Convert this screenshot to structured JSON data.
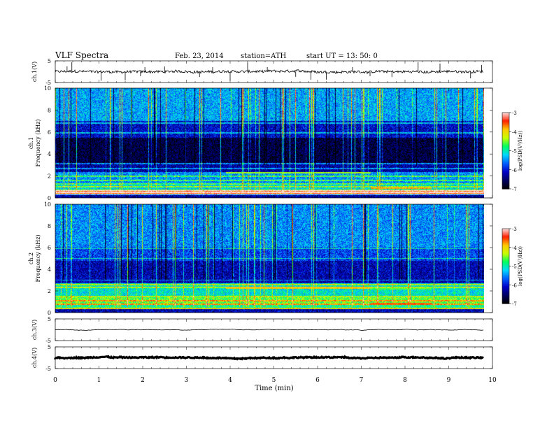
{
  "header": {
    "title": "VLF  Spectra",
    "date": "Feb. 23, 2014",
    "station": "station=ATH",
    "start": "start  UT  =   13: 50: 0"
  },
  "chart_data": {
    "type": "heatmap",
    "x_axis": {
      "label": "Time  (min)",
      "range": [
        0,
        10
      ],
      "ticks": [
        "0",
        "1",
        "2",
        "3",
        "4",
        "5",
        "6",
        "7",
        "8",
        "9",
        "10"
      ],
      "data_end": 9.8
    },
    "panels": [
      {
        "id": "ch1-waveform",
        "type": "line",
        "ylabel": "ch.1(V)",
        "yrange": [
          -5,
          5
        ],
        "ytick_labels": [
          "5",
          "-5"
        ],
        "baseline": 0,
        "noise_amplitude": 0.6,
        "spikes_min": [
          0.27,
          0.38,
          1.05,
          1.6,
          1.95,
          2.05,
          2.5,
          3.3,
          3.6,
          4.0,
          4.4,
          4.85,
          5.5,
          5.85,
          6.2,
          6.8,
          7.2,
          7.7,
          8.3,
          8.8,
          9.5,
          9.75
        ],
        "color": "#000000"
      },
      {
        "id": "ch1-spectrogram",
        "type": "heatmap",
        "ylabel": "ch.1\nFrequency  (kHz)",
        "ylabel_lines": [
          "ch.1",
          "Frequency  (kHz)"
        ],
        "yrange": [
          0,
          10
        ],
        "ytick_labels": [
          "0",
          "2",
          "4",
          "6",
          "8",
          "10"
        ],
        "colorbar": {
          "label": "log(PSD(V²/Hz))",
          "range": [
            -7,
            -3
          ],
          "ticks": [
            "-3",
            "-4",
            "-5",
            "-6",
            "-7"
          ]
        },
        "background_log_psd": [
          {
            "f": [
              0.0,
              0.3
            ],
            "v": -6.3
          },
          {
            "f": [
              0.3,
              0.7
            ],
            "v": -3.6
          },
          {
            "f": [
              0.7,
              1.2
            ],
            "v": -5.2
          },
          {
            "f": [
              1.2,
              2.2
            ],
            "v": -5.5
          },
          {
            "f": [
              2.2,
              3.2
            ],
            "v": -6.3
          },
          {
            "f": [
              3.2,
              5.5
            ],
            "v": -6.7
          },
          {
            "f": [
              5.5,
              7.0
            ],
            "v": -6.1
          },
          {
            "f": [
              7.0,
              10.0
            ],
            "v": -5.4
          }
        ],
        "tone_lines_khz": [
          0.3,
          0.5,
          0.7,
          1.0,
          1.3,
          1.6,
          2.0,
          2.3,
          2.7,
          3.1,
          5.9,
          6.8
        ],
        "event_segments": [
          {
            "t": [
              3.9,
              7.2
            ],
            "f": 2.3,
            "v": -4.4
          },
          {
            "t": [
              7.2,
              8.6
            ],
            "f": 0.9,
            "v": -3.8
          }
        ]
      },
      {
        "id": "ch2-spectrogram",
        "type": "heatmap",
        "ylabel": "ch.2\nFrequency  (kHz)",
        "ylabel_lines": [
          "ch.2",
          "Frequency  (kHz)"
        ],
        "yrange": [
          0,
          10
        ],
        "ytick_labels": [
          "0",
          "2",
          "4",
          "6",
          "8",
          "10"
        ],
        "colorbar": {
          "label": "log(PSD(V²/Hz))",
          "range": [
            -7,
            -3
          ],
          "ticks": [
            "-3",
            "-4",
            "-5",
            "-6",
            "-7"
          ]
        },
        "background_log_psd": [
          {
            "f": [
              0.0,
              0.3
            ],
            "v": -6.2
          },
          {
            "f": [
              0.3,
              0.7
            ],
            "v": -4.9
          },
          {
            "f": [
              0.7,
              1.4
            ],
            "v": -4.6
          },
          {
            "f": [
              1.4,
              2.7
            ],
            "v": -5.1
          },
          {
            "f": [
              2.7,
              4.8
            ],
            "v": -6.2
          },
          {
            "f": [
              4.8,
              6.0
            ],
            "v": -5.8
          },
          {
            "f": [
              6.0,
              10.0
            ],
            "v": -5.5
          }
        ],
        "tone_lines_khz": [
          0.4,
          0.8,
          1.1,
          1.5,
          2.3,
          2.6,
          3.0,
          5.0,
          5.9
        ],
        "event_segments": [
          {
            "t": [
              3.9,
              7.2
            ],
            "f": 2.3,
            "v": -3.9
          },
          {
            "t": [
              7.2,
              8.6
            ],
            "f": 0.8,
            "v": -3.6
          },
          {
            "t": [
              7.2,
              8.6
            ],
            "f": 2.2,
            "v": -4.6
          }
        ]
      },
      {
        "id": "ch3-waveform",
        "type": "line",
        "ylabel": "ch.3(V)",
        "yrange": [
          -5,
          5
        ],
        "ytick_labels": [
          "5",
          "-5"
        ],
        "baseline": 0,
        "noise_amplitude": 0.05,
        "color": "#000000"
      },
      {
        "id": "ch4-waveform",
        "type": "line",
        "ylabel": "ch.4(V)",
        "yrange": [
          -5,
          5
        ],
        "ytick_labels": [
          "5",
          "-5"
        ],
        "baseline": 0,
        "noise_amplitude": 0.25,
        "color": "#000000"
      }
    ],
    "colormap": [
      "#000000",
      "#000060",
      "#0000c8",
      "#0060ff",
      "#00d8ff",
      "#00ff60",
      "#c8ff00",
      "#ffc800",
      "#ff2000",
      "#ffe0e0"
    ]
  }
}
